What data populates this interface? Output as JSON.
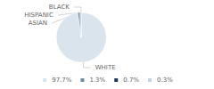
{
  "chart_data": {
    "type": "pie",
    "categories": [
      "WHITE",
      "ASIAN",
      "HISPANIC",
      "BLACK"
    ],
    "values": [
      97.7,
      1.3,
      0.7,
      0.3
    ],
    "value_labels": [
      "97.7%",
      "1.3%",
      "0.7%",
      "0.3%"
    ],
    "colors": [
      "#d9e4ec",
      "#6b8fa8",
      "#1e3a5f",
      "#c5d2db"
    ],
    "legend": "bottom"
  }
}
